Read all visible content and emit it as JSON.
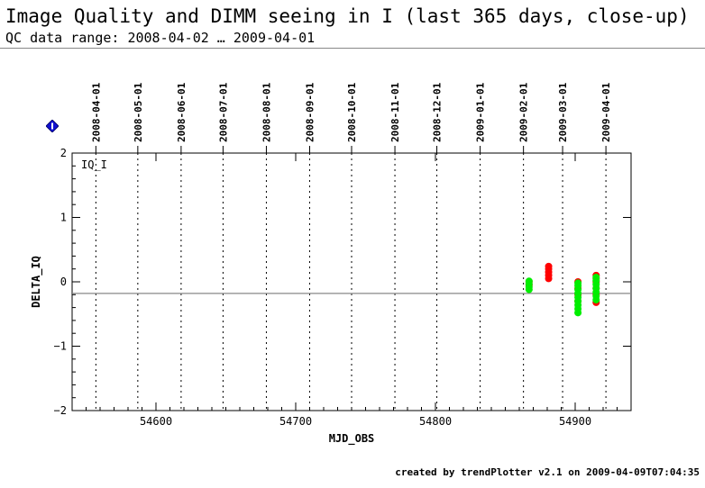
{
  "header": {
    "title": "Image Quality and DIMM seeing in I (last 365 days, close-up)",
    "subtitle": "QC data range: 2008-04-02 … 2009-04-01"
  },
  "footer": {
    "credit": "created by trendPlotter v2.1 on 2009-04-09T07:04:35"
  },
  "icons": {
    "info": "info-diamond-icon"
  },
  "colors": {
    "series_red": "#ff0000",
    "series_green": "#00ee00",
    "info_icon": "#1010d0",
    "reference_line": "#888888"
  },
  "chart_data": {
    "type": "scatter",
    "panel_label": "IQ_I",
    "xlabel": "MJD_OBS",
    "ylabel": "DELTA_IQ",
    "xlim": [
      54540,
      54940
    ],
    "ylim": [
      -2,
      2
    ],
    "x_ticks": [
      54600,
      54700,
      54800,
      54900
    ],
    "y_ticks": [
      -2,
      -1,
      0,
      1,
      2
    ],
    "reference_line_y": -0.18,
    "date_markers": [
      {
        "label": "2008-04-01",
        "mjd": 54557
      },
      {
        "label": "2008-05-01",
        "mjd": 54587
      },
      {
        "label": "2008-06-01",
        "mjd": 54618
      },
      {
        "label": "2008-07-01",
        "mjd": 54648
      },
      {
        "label": "2008-08-01",
        "mjd": 54679
      },
      {
        "label": "2008-09-01",
        "mjd": 54710
      },
      {
        "label": "2008-10-01",
        "mjd": 54740
      },
      {
        "label": "2008-11-01",
        "mjd": 54771
      },
      {
        "label": "2008-12-01",
        "mjd": 54801
      },
      {
        "label": "2009-01-01",
        "mjd": 54832
      },
      {
        "label": "2009-02-01",
        "mjd": 54863
      },
      {
        "label": "2009-03-01",
        "mjd": 54891
      },
      {
        "label": "2009-04-01",
        "mjd": 54922
      }
    ],
    "grid": "vertical dotted lines at month boundaries",
    "series": [
      {
        "color": "red",
        "points": [
          {
            "x": 54867,
            "y": -0.05
          },
          {
            "x": 54867,
            "y": 0.0
          },
          {
            "x": 54881,
            "y": 0.05
          },
          {
            "x": 54881,
            "y": 0.1
          },
          {
            "x": 54881,
            "y": 0.15
          },
          {
            "x": 54881,
            "y": 0.2
          },
          {
            "x": 54881,
            "y": 0.24
          },
          {
            "x": 54902,
            "y": -0.3
          },
          {
            "x": 54902,
            "y": -0.2
          },
          {
            "x": 54902,
            "y": -0.1
          },
          {
            "x": 54902,
            "y": 0.0
          },
          {
            "x": 54915,
            "y": -0.32
          },
          {
            "x": 54915,
            "y": -0.2
          },
          {
            "x": 54915,
            "y": -0.1
          },
          {
            "x": 54915,
            "y": 0.0
          },
          {
            "x": 54915,
            "y": 0.05
          },
          {
            "x": 54915,
            "y": 0.1
          }
        ]
      },
      {
        "color": "green",
        "points": [
          {
            "x": 54867,
            "y": -0.12
          },
          {
            "x": 54867,
            "y": -0.08
          },
          {
            "x": 54867,
            "y": -0.03
          },
          {
            "x": 54867,
            "y": 0.01
          },
          {
            "x": 54902,
            "y": -0.48
          },
          {
            "x": 54902,
            "y": -0.42
          },
          {
            "x": 54902,
            "y": -0.36
          },
          {
            "x": 54902,
            "y": -0.3
          },
          {
            "x": 54902,
            "y": -0.24
          },
          {
            "x": 54902,
            "y": -0.18
          },
          {
            "x": 54902,
            "y": -0.12
          },
          {
            "x": 54902,
            "y": -0.06
          },
          {
            "x": 54902,
            "y": -0.02
          },
          {
            "x": 54915,
            "y": -0.28
          },
          {
            "x": 54915,
            "y": -0.22
          },
          {
            "x": 54915,
            "y": -0.16
          },
          {
            "x": 54915,
            "y": -0.1
          },
          {
            "x": 54915,
            "y": -0.04
          },
          {
            "x": 54915,
            "y": 0.02
          },
          {
            "x": 54915,
            "y": 0.07
          }
        ]
      }
    ]
  }
}
